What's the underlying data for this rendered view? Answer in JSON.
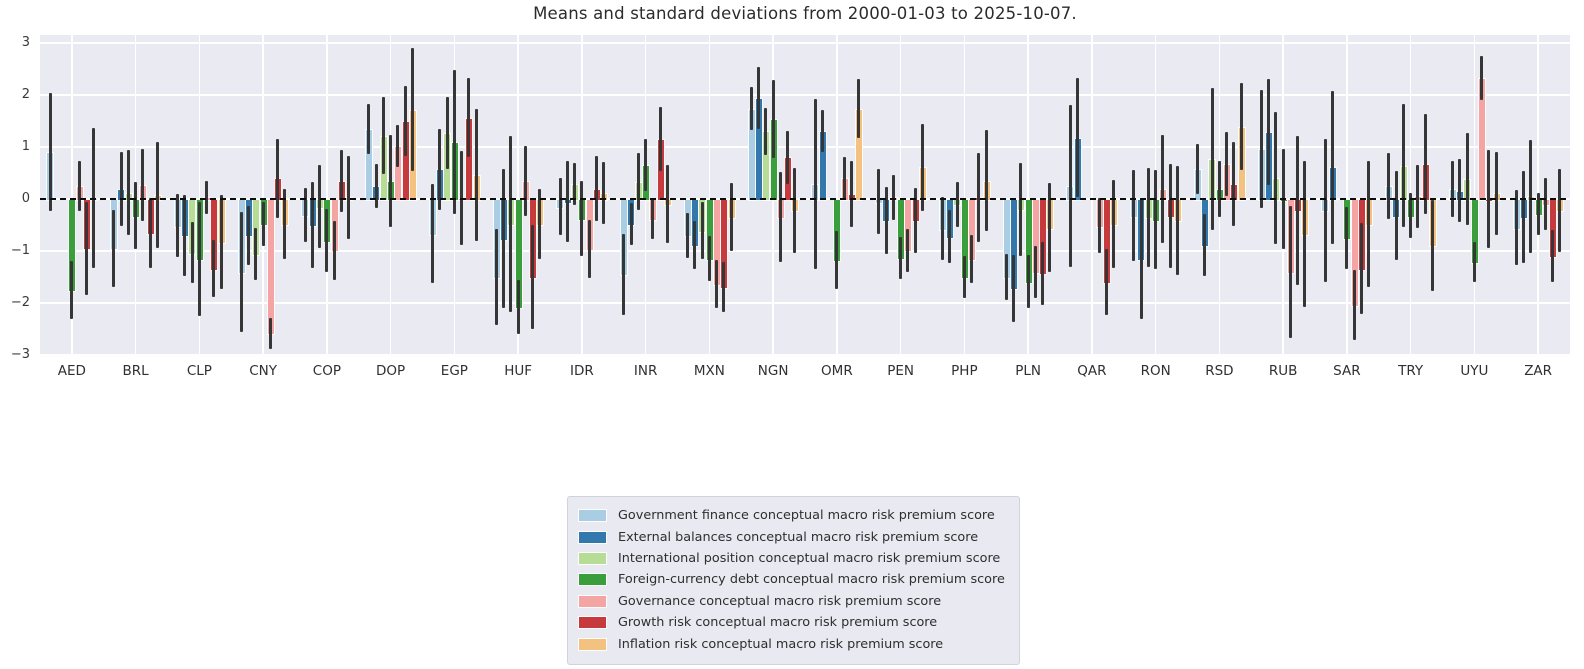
{
  "title": "Means and standard deviations from 2000-01-03 to 2025-10-07.",
  "chart_data": {
    "type": "bar",
    "title": "Means and standard deviations from 2000-01-03 to 2025-10-07.",
    "xlabel": "",
    "ylabel": "",
    "ylim": [
      -3.15,
      3.15
    ],
    "y_ticks": [
      3,
      2,
      1,
      0,
      -1,
      -2,
      -3
    ],
    "y_tick_labels": [
      "3",
      "2",
      "1",
      "0",
      "−1",
      "−2",
      "−3"
    ],
    "grid": true,
    "plot_bg_color": "#eaeaf2",
    "grid_color": "#ffffff",
    "error_bar_color": "#363636",
    "zero_line_style": "dashed-black",
    "legend_position": "below-center",
    "categories": [
      "AED",
      "BRL",
      "CLP",
      "CNY",
      "COP",
      "DOP",
      "EGP",
      "HUF",
      "IDR",
      "INR",
      "MXN",
      "NGN",
      "OMR",
      "PEN",
      "PHP",
      "PLN",
      "QAR",
      "RON",
      "RSD",
      "RUB",
      "SAR",
      "TRY",
      "UYU",
      "ZAR"
    ],
    "series": [
      {
        "name": "Government finance conceptual macro risk premium score",
        "key": "gov-finance",
        "color": "#a9cde2",
        "means": [
          0.9,
          -0.95,
          -0.51,
          -1.4,
          -0.3,
          1.34,
          -0.67,
          -1.5,
          -0.15,
          -1.45,
          -0.7,
          1.74,
          0.29,
          -0.05,
          -0.57,
          -1.5,
          0.25,
          -0.32,
          0.57,
          0.96,
          -0.22,
          0.25,
          0.19,
          -0.55
        ],
        "stds": [
          1.14,
          0.74,
          0.6,
          1.15,
          0.52,
          0.48,
          0.95,
          0.93,
          0.55,
          0.78,
          0.43,
          0.42,
          1.64,
          0.63,
          0.6,
          0.45,
          1.55,
          0.88,
          0.48,
          1.14,
          1.37,
          0.64,
          0.54,
          0.72
        ]
      },
      {
        "name": "External balances conceptual macro risk premium score",
        "key": "ext-balances",
        "color": "#3378ad",
        "means": [
          null,
          0.19,
          -0.7,
          -0.7,
          -0.5,
          0.25,
          0.57,
          -0.76,
          -0.05,
          -0.48,
          -0.89,
          1.94,
          1.31,
          -0.41,
          -0.73,
          -1.72,
          1.18,
          -1.15,
          -0.89,
          1.28,
          0.61,
          -0.32,
          0.16,
          -0.35
        ],
        "stds": [
          null,
          0.71,
          0.78,
          0.57,
          0.82,
          0.43,
          0.78,
          1.33,
          0.78,
          0.4,
          0.46,
          0.6,
          0.41,
          0.65,
          0.51,
          0.65,
          1.15,
          1.15,
          0.6,
          1.02,
          1.47,
          0.86,
          0.61,
          0.89
        ]
      },
      {
        "name": "International position conceptual macro risk premium score",
        "key": "intl-position",
        "color": "#b6dc95",
        "means": [
          null,
          0.12,
          -1.03,
          -1.05,
          -0.15,
          1.22,
          1.27,
          -0.48,
          0.29,
          0.33,
          -0.61,
          1.3,
          null,
          0.03,
          -0.1,
          -0.2,
          null,
          -0.35,
          0.77,
          0.41,
          null,
          0.64,
          0.38,
          0.05
        ],
        "stds": [
          null,
          0.82,
          0.58,
          0.5,
          0.8,
          0.74,
          0.7,
          1.7,
          0.4,
          0.55,
          0.55,
          0.45,
          null,
          0.43,
          0.43,
          0.9,
          null,
          0.95,
          1.37,
          1.27,
          null,
          1.18,
          0.88,
          1.08
        ]
      },
      {
        "name": "Foreign-currency debt conceptual macro risk premium score",
        "key": "fc-debt",
        "color": "#3a9e3d",
        "means": [
          -1.75,
          -0.32,
          -1.15,
          -0.48,
          -0.8,
          0.35,
          1.1,
          -2.07,
          -0.38,
          0.65,
          -1.15,
          1.54,
          -1.18,
          -1.13,
          -1.5,
          -1.59,
          null,
          -0.4,
          0.19,
          0.0,
          -0.75,
          -0.32,
          -1.21,
          -0.29
        ],
        "stds": [
          0.55,
          0.65,
          1.1,
          0.42,
          0.6,
          0.88,
          1.38,
          0.52,
          0.72,
          0.5,
          0.43,
          0.75,
          0.56,
          0.4,
          0.4,
          0.51,
          null,
          0.95,
          0.54,
          0.97,
          0.6,
          0.43,
          0.38,
          0.4
        ]
      },
      {
        "name": "Governance conceptual macro risk premium score",
        "key": "governance",
        "color": "#f4a5a3",
        "means": [
          0.25,
          0.27,
          0.03,
          -2.58,
          -0.99,
          1.02,
          0.02,
          0.35,
          -0.96,
          -0.38,
          -1.63,
          -0.35,
          0.4,
          -0.99,
          -1.15,
          -1.4,
          -0.51,
          0.19,
          0.67,
          -1.4,
          -2.04,
          0.05,
          2.33,
          -0.1
        ],
        "stds": [
          0.48,
          0.69,
          0.32,
          0.3,
          0.57,
          0.4,
          0.9,
          0.67,
          0.55,
          0.38,
          0.46,
          0.86,
          0.4,
          0.42,
          0.46,
          0.5,
          0.52,
          1.04,
          0.61,
          1.27,
          0.68,
          0.6,
          0.42,
          0.5
        ]
      },
      {
        "name": "Growth risk conceptual macro risk premium score",
        "key": "growth-risk",
        "color": "#c63a3d",
        "means": [
          -0.95,
          -0.66,
          -1.34,
          0.4,
          0.35,
          1.5,
          1.56,
          -1.5,
          0.2,
          1.15,
          -1.69,
          0.8,
          0.1,
          -0.41,
          0.03,
          -1.43,
          -1.6,
          -0.32,
          0.29,
          -0.22,
          -1.34,
          0.67,
          0.0,
          -1.1
        ],
        "stds": [
          0.9,
          0.67,
          0.55,
          0.76,
          0.6,
          0.68,
          0.76,
          1.0,
          0.63,
          0.62,
          0.48,
          0.51,
          0.64,
          0.62,
          0.86,
          0.6,
          0.64,
          1.0,
          0.8,
          1.44,
          0.88,
          0.96,
          0.95,
          0.5
        ]
      },
      {
        "name": "Inflation risk conceptual macro risk premium score",
        "key": "inflation-risk",
        "color": "#f3c180",
        "means": [
          0.02,
          0.08,
          -0.83,
          -0.48,
          0.03,
          1.72,
          0.47,
          -0.48,
          0.12,
          -0.1,
          -0.35,
          -0.22,
          1.74,
          0.61,
          0.35,
          -0.55,
          -0.48,
          -0.41,
          1.39,
          -0.67,
          -0.48,
          -0.89,
          0.11,
          -0.22
        ],
        "stds": [
          1.35,
          1.02,
          0.9,
          0.67,
          0.8,
          1.18,
          1.27,
          0.67,
          0.6,
          0.75,
          0.65,
          0.81,
          0.56,
          0.84,
          0.97,
          0.85,
          0.85,
          1.05,
          0.84,
          1.41,
          1.22,
          0.88,
          0.8,
          0.8
        ]
      }
    ]
  }
}
